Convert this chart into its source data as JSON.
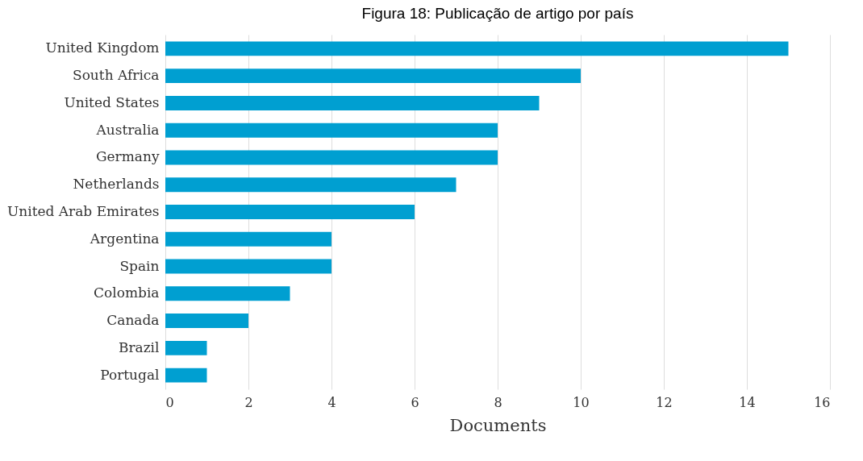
{
  "chart_data": {
    "type": "bar",
    "orientation": "horizontal",
    "title": "Figura 18: Publicação de artigo por país",
    "xlabel": "Documents",
    "categories": [
      "United Kingdom",
      "South Africa",
      "United States",
      "Australia",
      "Germany",
      "Netherlands",
      "United Arab Emirates",
      "Argentina",
      "Spain",
      "Colombia",
      "Canada",
      "Brazil",
      "Portugal"
    ],
    "values": [
      15,
      10,
      9,
      8,
      8,
      7,
      6,
      4,
      4,
      3,
      2,
      1,
      1
    ],
    "color": "#009fd1",
    "xlim": [
      0,
      16
    ],
    "xticks": [
      0,
      2,
      4,
      6,
      8,
      10,
      12,
      14,
      16
    ],
    "grid": "x"
  }
}
